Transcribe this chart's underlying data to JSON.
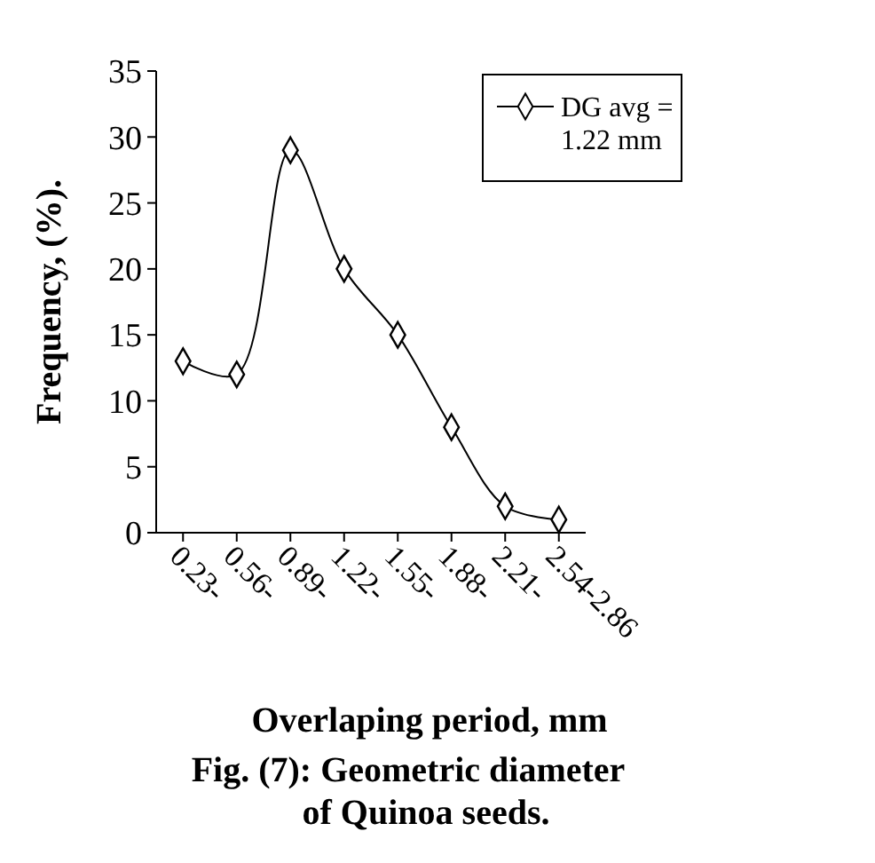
{
  "chart_data": {
    "type": "line",
    "title": "Fig. (7): Geometric diameter of Quinoa seeds.",
    "xlabel": "Overlaping period, mm",
    "ylabel": "Frequency, (%).",
    "categories": [
      "0.23-",
      "0.56-",
      "0.89-",
      "1.22-",
      "1.55-",
      "1.88-",
      "2.21-",
      "2.54-2.86"
    ],
    "series": [
      {
        "name": "DG avg = 1.22 mm",
        "color": "#000000",
        "values": [
          13,
          12,
          29,
          20,
          15,
          8,
          2,
          1
        ]
      }
    ],
    "ylim": [
      0,
      35
    ],
    "yticks": [
      0,
      5,
      10,
      15,
      20,
      25,
      30,
      35
    ],
    "grid": false,
    "legend": "top right",
    "marker": "diamond",
    "line_style": "solid"
  }
}
